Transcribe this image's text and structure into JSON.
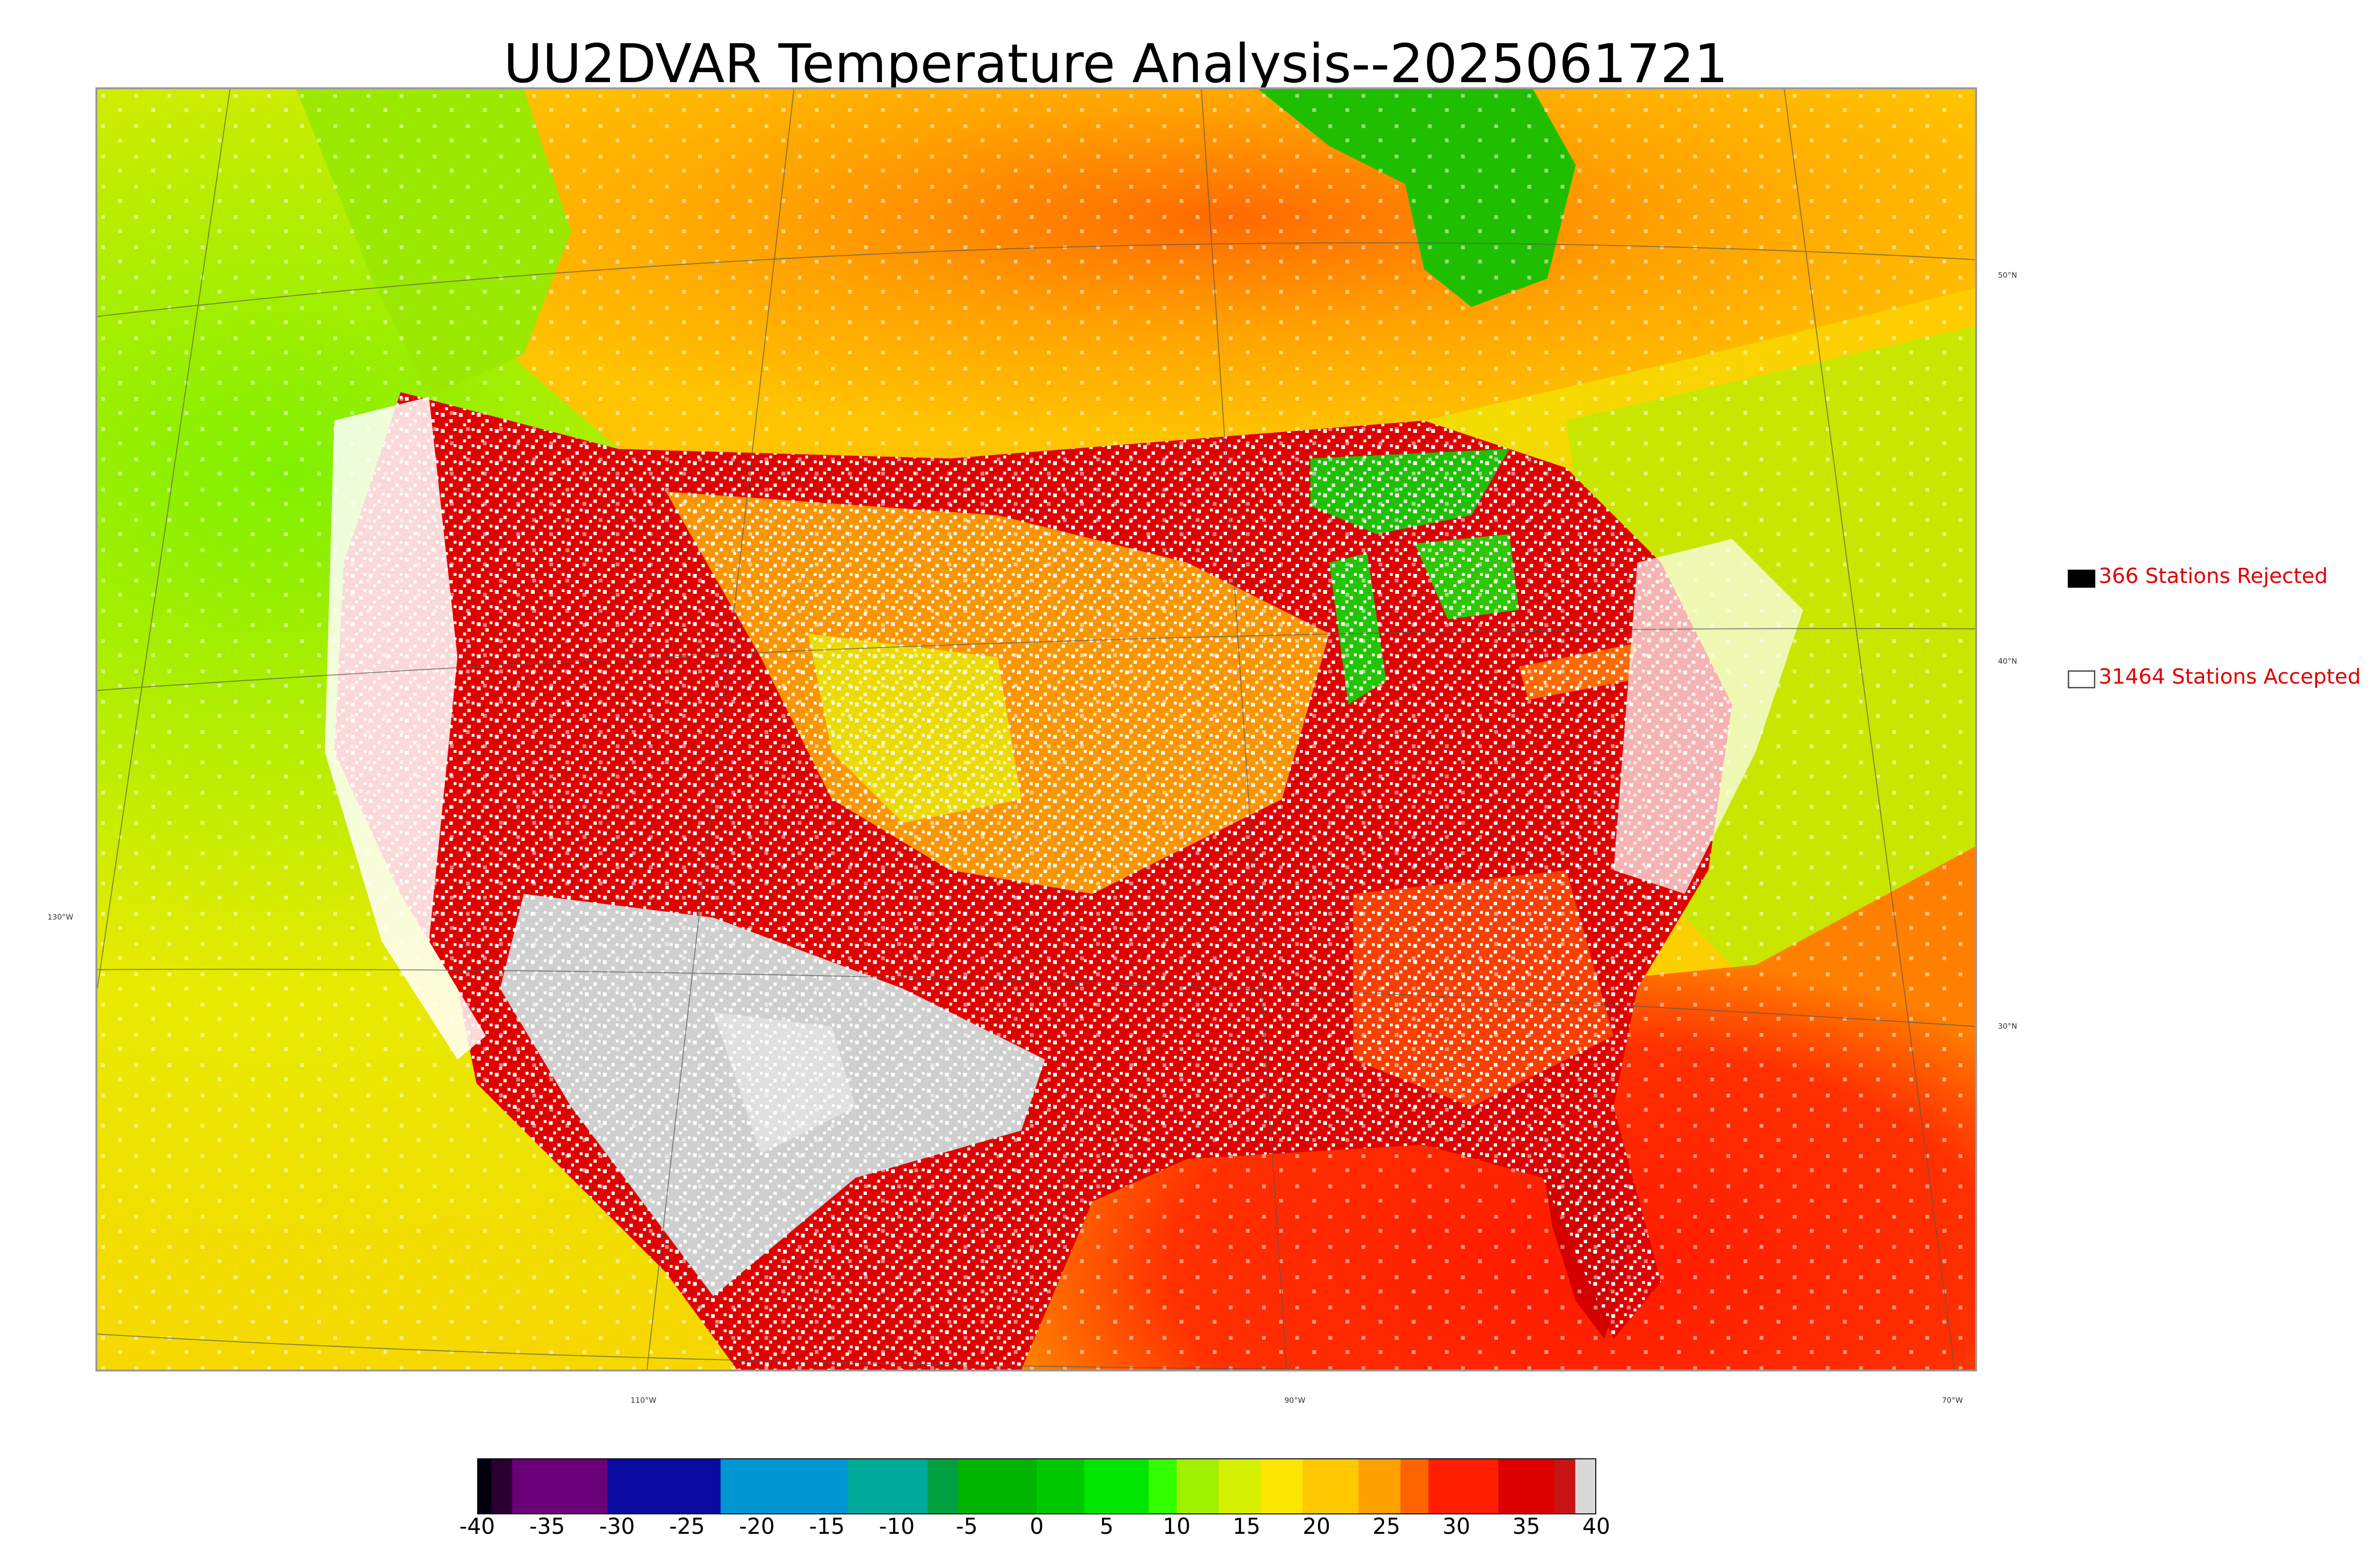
{
  "title": "UU2DVAR Temperature Analysis--2025061721",
  "map": {
    "lat_labels": [
      "50°N",
      "40°N",
      "30°N"
    ],
    "lon_labels": [
      "130°W",
      "110°W",
      "90°W",
      "70°W"
    ],
    "colors": {
      "ocean_cool": "#a8e600",
      "ocean_mild": "#f0e600",
      "warm": "#ffaa00",
      "hot": "#ff2a00",
      "very_hot": "#d80000",
      "extreme": "#cccccc",
      "cool_lake": "#22c700",
      "stations": "#ffffff"
    }
  },
  "legend": {
    "rejected": {
      "count": "366",
      "text": "366 Stations Rejected",
      "swatch_color": "#000000"
    },
    "accepted": {
      "count": "31464",
      "text": "31464 Stations Accepted",
      "swatch_color": "#ffffff"
    }
  },
  "colorbar": {
    "min": -40,
    "max": 40,
    "tick_labels": [
      "-40",
      "-35",
      "-30",
      "-25",
      "-20",
      "-15",
      "-10",
      "-5",
      "0",
      "5",
      "10",
      "15",
      "20",
      "25",
      "30",
      "35",
      "40"
    ],
    "segments": [
      {
        "from": -40,
        "to": -39,
        "color": "#000010"
      },
      {
        "from": -39,
        "to": -37.5,
        "color": "#2a0030"
      },
      {
        "from": -37.5,
        "to": -30.7,
        "color": "#6a0078"
      },
      {
        "from": -30.7,
        "to": -22.6,
        "color": "#0a0aa0"
      },
      {
        "from": -22.6,
        "to": -13.5,
        "color": "#0096d2"
      },
      {
        "from": -13.5,
        "to": -7.8,
        "color": "#00aa9a"
      },
      {
        "from": -7.8,
        "to": -5.6,
        "color": "#00a040"
      },
      {
        "from": -5.6,
        "to": 0,
        "color": "#00b400"
      },
      {
        "from": 0,
        "to": 3.4,
        "color": "#00c800"
      },
      {
        "from": 3.4,
        "to": 8,
        "color": "#00e600"
      },
      {
        "from": 8,
        "to": 10,
        "color": "#32ff00"
      },
      {
        "from": 10,
        "to": 13,
        "color": "#a0f000"
      },
      {
        "from": 13,
        "to": 16,
        "color": "#d4f000"
      },
      {
        "from": 16,
        "to": 19,
        "color": "#fae600"
      },
      {
        "from": 19,
        "to": 23,
        "color": "#ffc800"
      },
      {
        "from": 23,
        "to": 26,
        "color": "#ffa000"
      },
      {
        "from": 26,
        "to": 28,
        "color": "#ff6400"
      },
      {
        "from": 28,
        "to": 33,
        "color": "#ff1e00"
      },
      {
        "from": 33,
        "to": 37,
        "color": "#dc0000"
      },
      {
        "from": 37,
        "to": 38.5,
        "color": "#c81414"
      },
      {
        "from": 38.5,
        "to": 40,
        "color": "#d8d8d8"
      }
    ]
  }
}
